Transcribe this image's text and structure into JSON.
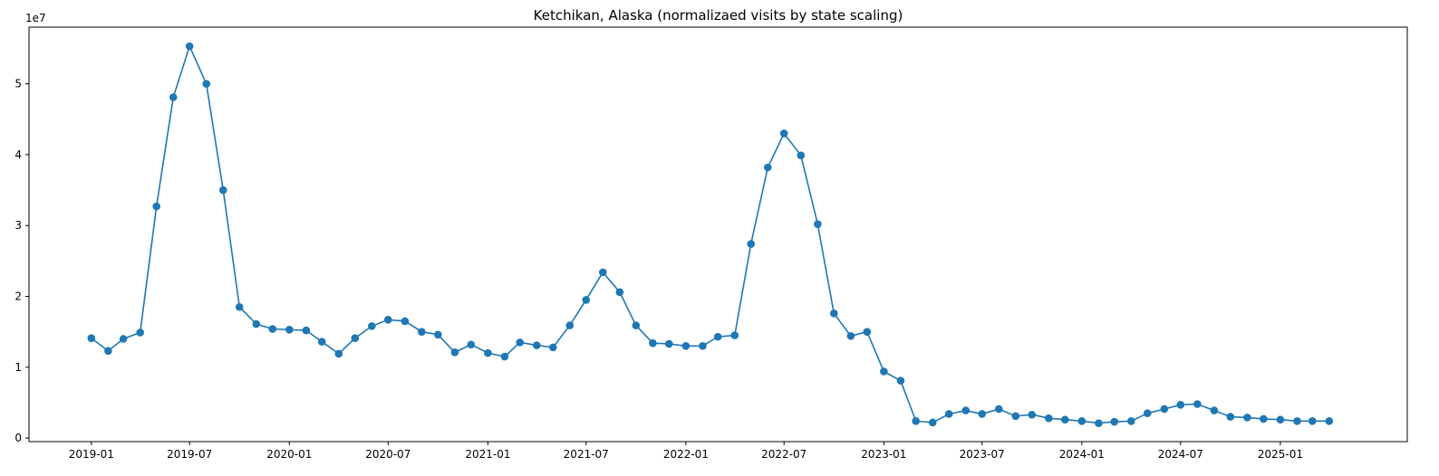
{
  "chart_data": {
    "type": "line",
    "title": "Ketchikan, Alaska (normalizaed visits by state scaling)",
    "xlabel": "",
    "ylabel": "",
    "y_offset_label": "1e7",
    "x_tick_labels": [
      "2019-01",
      "2019-07",
      "2020-01",
      "2020-07",
      "2021-01",
      "2021-07",
      "2022-01",
      "2022-07",
      "2023-01",
      "2023-07",
      "2024-01",
      "2024-07",
      "2025-01"
    ],
    "y_ticks": [
      0,
      1,
      2,
      3,
      4,
      5
    ],
    "ylim": [
      -0.05,
      5.8
    ],
    "xlim": [
      "2018-09-08",
      "2025-08-23"
    ],
    "grid": false,
    "marker": "circle",
    "color": "#1f77b4",
    "series": [
      {
        "x": [
          "2019-01-01",
          "2019-02-01",
          "2019-03-01",
          "2019-04-01",
          "2019-05-01",
          "2019-06-01",
          "2019-07-01",
          "2019-08-01",
          "2019-09-01",
          "2019-10-01",
          "2019-11-01",
          "2019-12-01",
          "2020-01-01",
          "2020-02-01",
          "2020-03-01",
          "2020-04-01",
          "2020-05-01",
          "2020-06-01",
          "2020-07-01",
          "2020-08-01",
          "2020-09-01",
          "2020-10-01",
          "2020-11-01",
          "2020-12-01",
          "2021-01-01",
          "2021-02-01",
          "2021-03-01",
          "2021-04-01",
          "2021-05-01",
          "2021-06-01",
          "2021-07-01",
          "2021-08-01",
          "2021-09-01",
          "2021-10-01",
          "2021-11-01",
          "2021-12-01",
          "2022-01-01",
          "2022-02-01",
          "2022-03-01",
          "2022-04-01",
          "2022-05-01",
          "2022-06-01",
          "2022-07-01",
          "2022-08-01",
          "2022-09-01",
          "2022-10-01",
          "2022-11-01",
          "2022-12-01",
          "2023-01-01",
          "2023-02-01",
          "2023-03-01",
          "2023-04-01",
          "2023-05-01",
          "2023-06-01",
          "2023-07-01",
          "2023-08-01",
          "2023-09-01",
          "2023-10-01",
          "2023-11-01",
          "2023-12-01",
          "2024-01-01",
          "2024-02-01",
          "2024-03-01",
          "2024-04-01",
          "2024-05-01",
          "2024-06-01",
          "2024-07-01",
          "2024-08-01",
          "2024-09-01",
          "2024-10-01",
          "2024-11-01",
          "2024-12-01",
          "2025-01-01",
          "2025-02-01",
          "2025-03-01",
          "2025-04-01"
        ],
        "values": [
          1.41,
          1.23,
          1.4,
          1.49,
          3.27,
          4.81,
          5.53,
          5.0,
          3.5,
          1.85,
          1.61,
          1.54,
          1.53,
          1.52,
          1.36,
          1.19,
          1.41,
          1.58,
          1.67,
          1.65,
          1.5,
          1.46,
          1.21,
          1.32,
          1.2,
          1.15,
          1.35,
          1.31,
          1.28,
          1.59,
          1.95,
          2.34,
          2.06,
          1.59,
          1.34,
          1.33,
          1.3,
          1.3,
          1.43,
          1.45,
          2.74,
          3.82,
          4.3,
          3.99,
          3.02,
          1.76,
          1.44,
          1.5,
          0.94,
          0.81,
          0.24,
          0.22,
          0.34,
          0.39,
          0.34,
          0.41,
          0.31,
          0.33,
          0.28,
          0.26,
          0.24,
          0.21,
          0.23,
          0.24,
          0.35,
          0.41,
          0.47,
          0.48,
          0.39,
          0.3,
          0.29,
          0.27,
          0.26,
          0.24,
          0.24,
          0.24
        ]
      }
    ]
  }
}
